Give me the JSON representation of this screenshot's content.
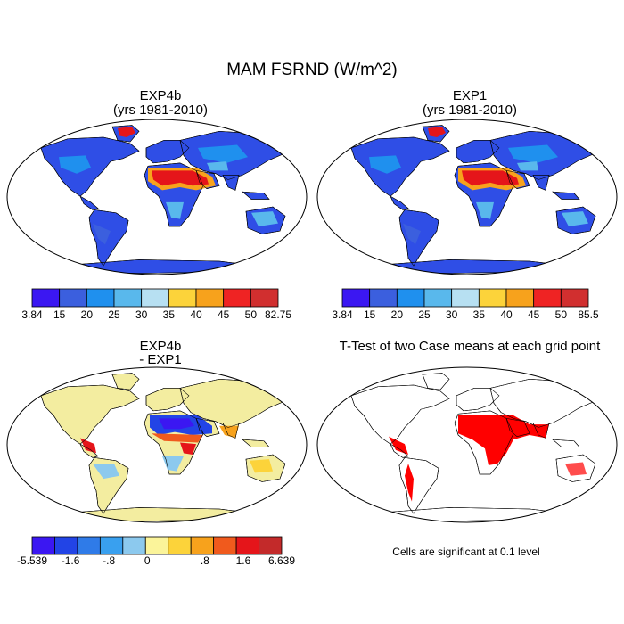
{
  "chart_data": {
    "type": "map",
    "title": "MAM FSRND (W/m^2)",
    "panels": [
      {
        "id": "exp4b",
        "title_lines": [
          "EXP4b",
          "(yrs 1981-2010)"
        ],
        "colorbar": {
          "colors": [
            "#3b17f2",
            "#3b5fde",
            "#1f90ee",
            "#59b8ec",
            "#b7e0f2",
            "#fcd33a",
            "#f7a21c",
            "#ef2323",
            "#d12f2f"
          ],
          "ticks": [
            "3.84",
            "15",
            "20",
            "25",
            "30",
            "35",
            "40",
            "45",
            "50",
            "82.75"
          ]
        }
      },
      {
        "id": "exp1",
        "title_lines": [
          "EXP1",
          "(yrs 1981-2010)"
        ],
        "colorbar": {
          "colors": [
            "#3b17f2",
            "#3b5fde",
            "#1f90ee",
            "#59b8ec",
            "#b7e0f2",
            "#fcd33a",
            "#f7a21c",
            "#ef2323",
            "#d12f2f"
          ],
          "ticks": [
            "3.84",
            "15",
            "20",
            "25",
            "30",
            "35",
            "40",
            "45",
            "50",
            "85.5"
          ]
        }
      },
      {
        "id": "diff",
        "title_lines": [
          "EXP4b",
          "- EXP1"
        ],
        "colorbar": {
          "colors": [
            "#3b17f2",
            "#2244e6",
            "#2f7be8",
            "#39a0ef",
            "#8cc9ee",
            "#fbf49a",
            "#fcd33a",
            "#f7a21c",
            "#f05a1d",
            "#e5151a",
            "#c32a2a"
          ],
          "ticks": [
            "-5.539",
            "",
            "-1.6",
            "",
            "-.8",
            "",
            "0",
            "",
            "",
            ".8",
            "",
            "1.6",
            "",
            "6.639"
          ]
        }
      },
      {
        "id": "ttest",
        "title_lines": [
          "T-Test of two Case means at each grid point"
        ],
        "note": "Cells are significant at 0.1 level"
      }
    ]
  },
  "colors": {
    "land_default": "#2f4ee6",
    "sig": "#ff0000",
    "coast": "#000000"
  }
}
